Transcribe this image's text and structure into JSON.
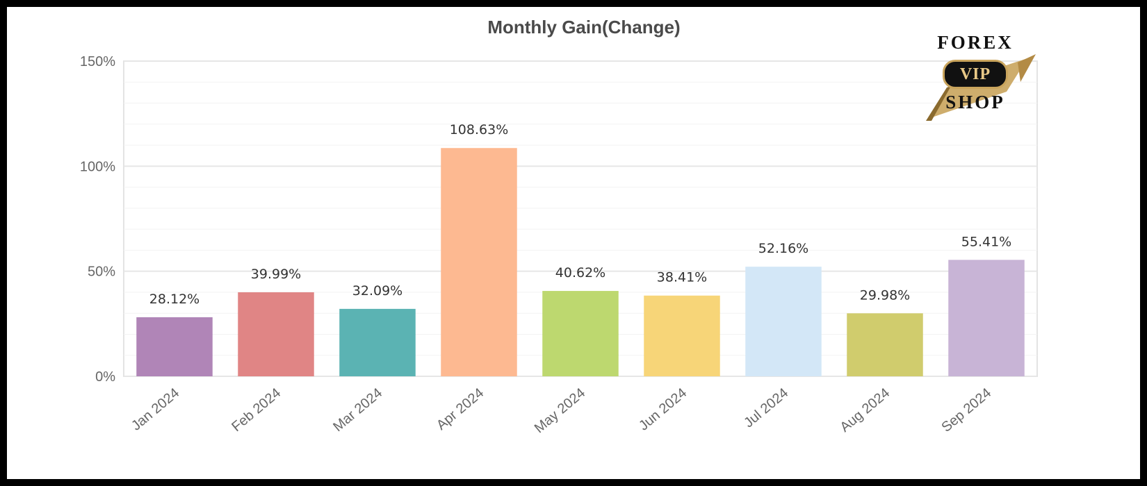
{
  "chart_data": {
    "type": "bar",
    "title": "Monthly Gain(Change)",
    "xlabel": "",
    "ylabel": "",
    "categories": [
      "Jan 2024",
      "Feb 2024",
      "Mar 2024",
      "Apr 2024",
      "May 2024",
      "Jun 2024",
      "Jul 2024",
      "Aug 2024",
      "Sep 2024"
    ],
    "values": [
      28.12,
      39.99,
      32.09,
      108.63,
      40.62,
      38.41,
      52.16,
      29.98,
      55.41
    ],
    "data_labels": [
      "28.12%",
      "39.99%",
      "32.09%",
      "108.63%",
      "40.62%",
      "38.41%",
      "52.16%",
      "29.98%",
      "55.41%"
    ],
    "colors": [
      "#b085b7",
      "#e08585",
      "#5bb3b3",
      "#fdb991",
      "#bdd86f",
      "#f7d578",
      "#d3e7f7",
      "#d0cc6d",
      "#c8b4d6"
    ],
    "ylim": [
      0,
      150
    ],
    "yticks": [
      0,
      50,
      100,
      150
    ],
    "ytick_labels": [
      "0%",
      "50%",
      "100%",
      "150%"
    ],
    "grid": true,
    "legend": "none"
  },
  "logo": {
    "top_text": "FOREX",
    "badge_text": "VIP",
    "bottom_text": "SHOP"
  }
}
